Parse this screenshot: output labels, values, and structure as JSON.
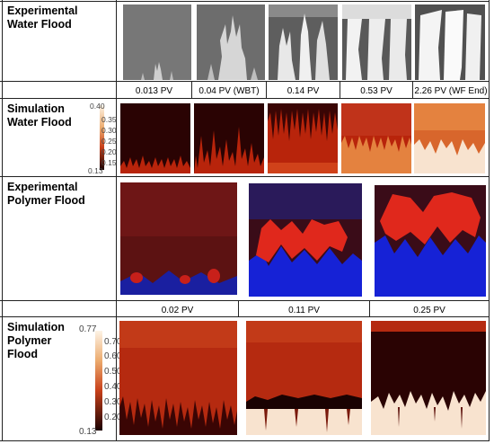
{
  "row_labels": {
    "exp_wf": "Experimental\nWater Flood",
    "sim_wf": "Simulation\nWater Flood",
    "exp_pf": "Experimental\nPolymer Flood",
    "sim_pf": "Simulation\nPolymer\nFlood"
  },
  "wf_times": [
    "0.013 PV",
    "0.04 PV (WBT)",
    "0.14 PV",
    "0.53 PV",
    "2.26 PV (WF End)"
  ],
  "pf_times": [
    "0.02 PV",
    "0.11 PV",
    "0.25 PV"
  ],
  "colorbar_wf": {
    "max": "0.40",
    "ticks": [
      "0.35",
      "0.30",
      "0.25",
      "0.20",
      "0.15"
    ],
    "min": "0.13"
  },
  "colorbar_pf": {
    "max": "0.77",
    "ticks": [
      "0.70",
      "0.60",
      "0.50",
      "0.40",
      "0.30",
      "0.20"
    ],
    "min": "0.13"
  },
  "colors": {
    "sim_dark": "#2a0303",
    "sim_red": "#b8240b",
    "sim_orange": "#e4823f",
    "sim_light": "#f8e3cf",
    "exp_blue": "#1622d6",
    "exp_red": "#e0281c",
    "exp_maroon": "#3a0c18"
  }
}
